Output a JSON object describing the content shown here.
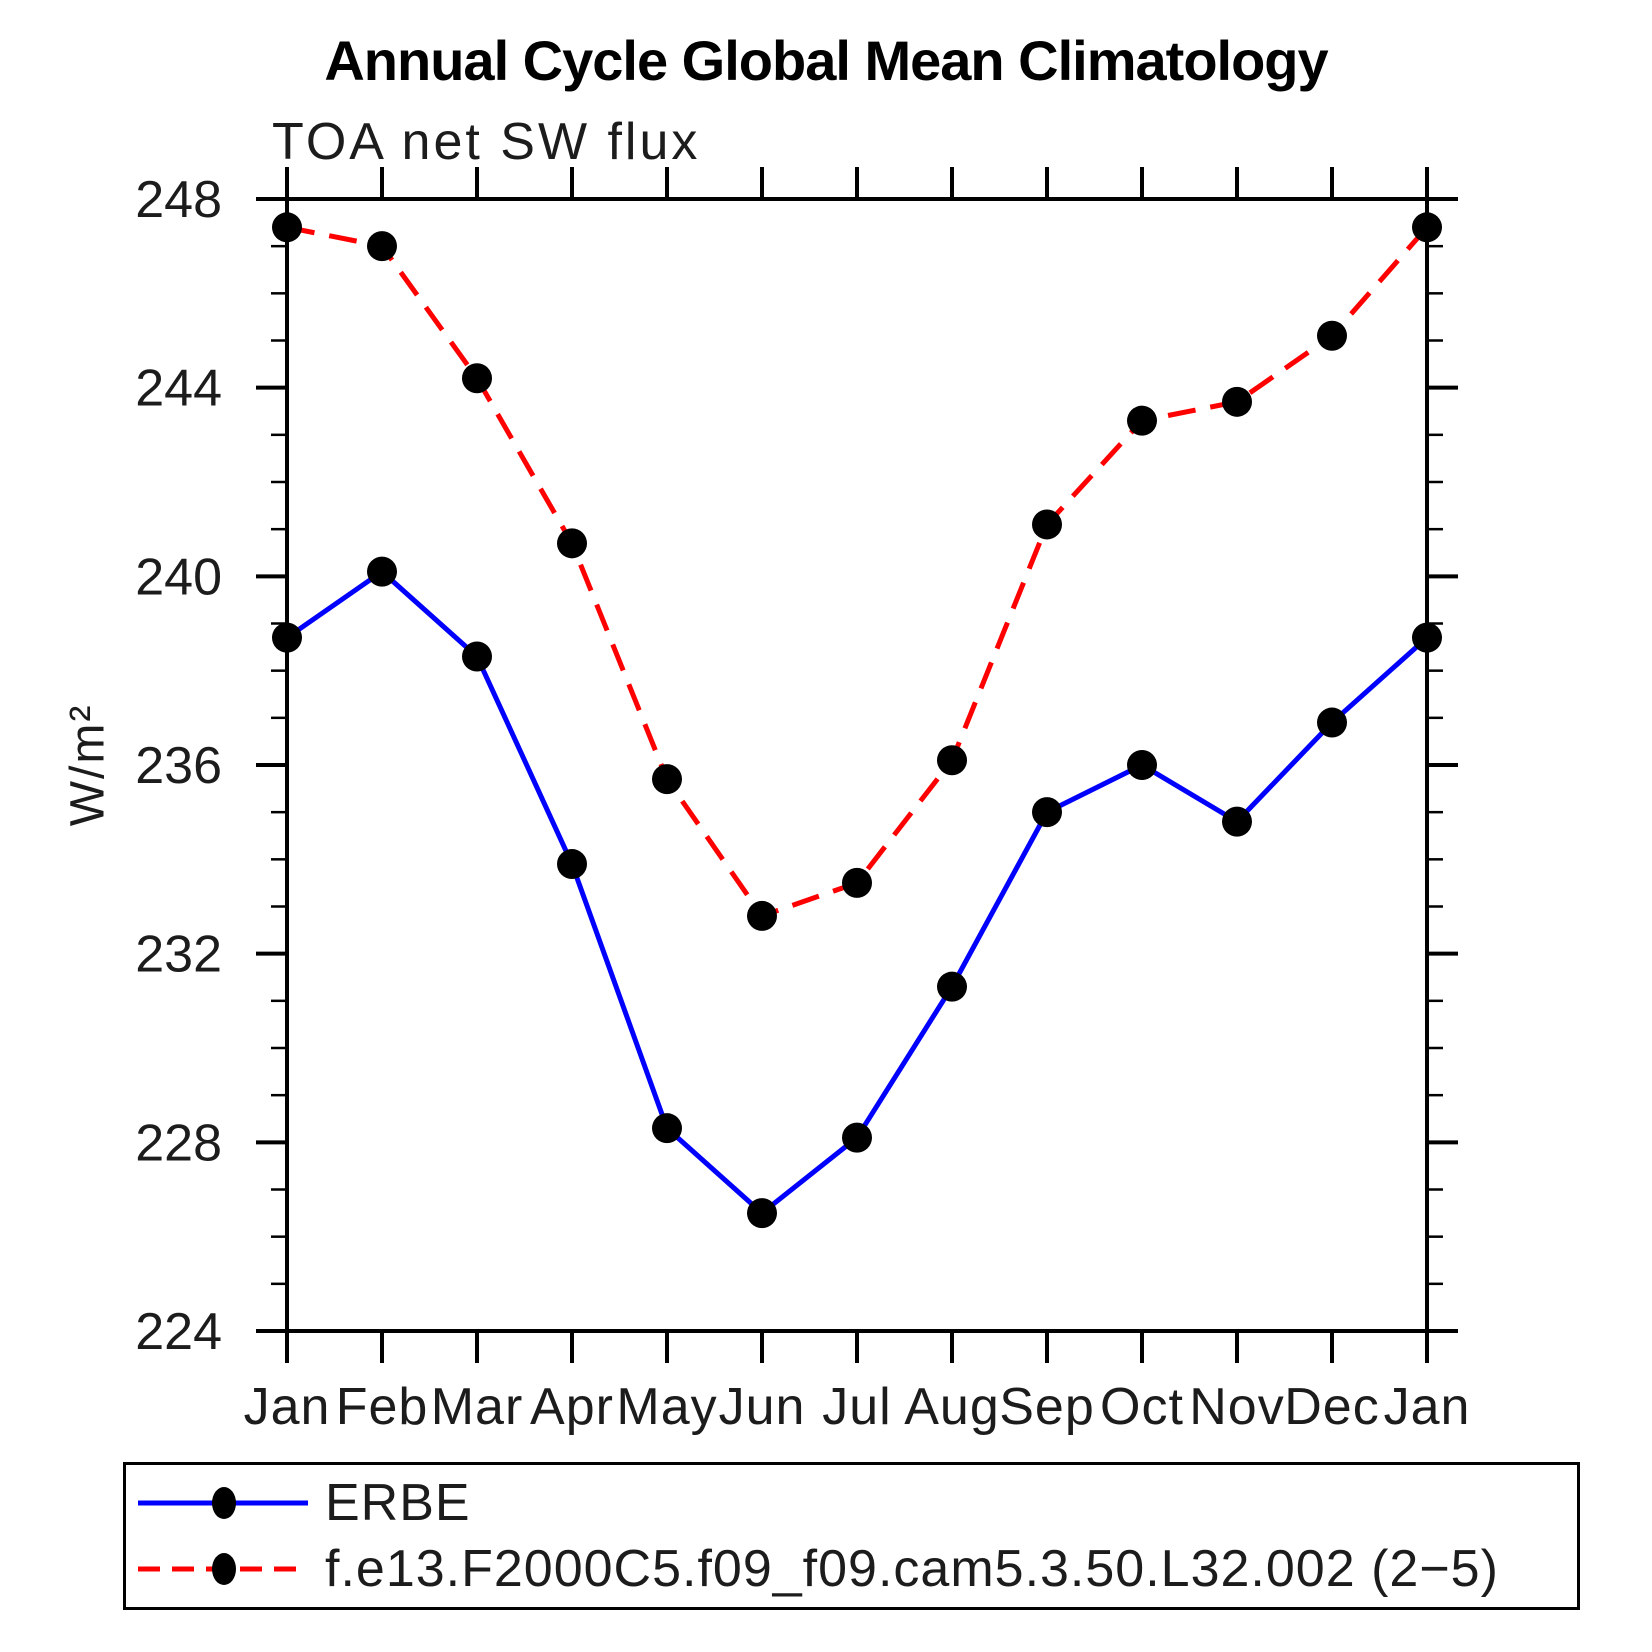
{
  "title": "Annual Cycle Global Mean Climatology",
  "subtitle": "TOA net SW flux",
  "y_axis": {
    "label": "W/m²",
    "tick_labels": [
      "248",
      "244",
      "240",
      "236",
      "232",
      "228",
      "224"
    ],
    "min": 224,
    "max": 248,
    "major_step": 4,
    "minor_step": 1
  },
  "x_axis": {
    "tick_labels": [
      "Jan",
      "Feb",
      "Mar",
      "Apr",
      "May",
      "Jun",
      "Jul",
      "Aug",
      "Sep",
      "Oct",
      "Nov",
      "Dec",
      "Jan"
    ]
  },
  "legend": {
    "entries": [
      {
        "label": "ERBE",
        "color": "#0000ff",
        "line_style": "solid",
        "marker": "filled-circle"
      },
      {
        "label": "f.e13.F2000C5.f09_f09.cam5.3.50.L32.002 (2−5)",
        "color": "#ff0000",
        "line_style": "dashed",
        "marker": "filled-circle"
      }
    ]
  },
  "chart_data": {
    "type": "line",
    "x_categories": [
      "Jan",
      "Feb",
      "Mar",
      "Apr",
      "May",
      "Jun",
      "Jul",
      "Aug",
      "Sep",
      "Oct",
      "Nov",
      "Dec",
      "Jan"
    ],
    "series": [
      {
        "name": "ERBE",
        "color": "#0000ff",
        "line_style": "solid",
        "marker": "filled-circle",
        "marker_color": "#000000",
        "values": [
          238.7,
          240.1,
          238.3,
          233.9,
          228.3,
          226.5,
          228.1,
          231.3,
          235.0,
          236.0,
          234.8,
          236.9,
          238.7
        ]
      },
      {
        "name": "f.e13.F2000C5.f09_f09.cam5.3.50.L32.002 (2−5)",
        "color": "#ff0000",
        "line_style": "dashed",
        "marker": "filled-circle",
        "marker_color": "#000000",
        "values": [
          247.4,
          247.0,
          244.2,
          240.7,
          235.7,
          232.8,
          233.5,
          236.1,
          241.1,
          243.3,
          243.7,
          245.1,
          247.4
        ]
      }
    ],
    "title": "Annual Cycle Global Mean Climatology",
    "subtitle": "TOA net SW flux",
    "ylabel": "W/m²",
    "ylim": [
      224,
      248
    ],
    "grid": false,
    "legend_position": "bottom-left"
  },
  "colors": {
    "background": "#ffffff",
    "frame": "#000000",
    "text": "#1c1c1c",
    "series_blue": "#0000ff",
    "series_red": "#ff0000",
    "marker": "#000000"
  }
}
